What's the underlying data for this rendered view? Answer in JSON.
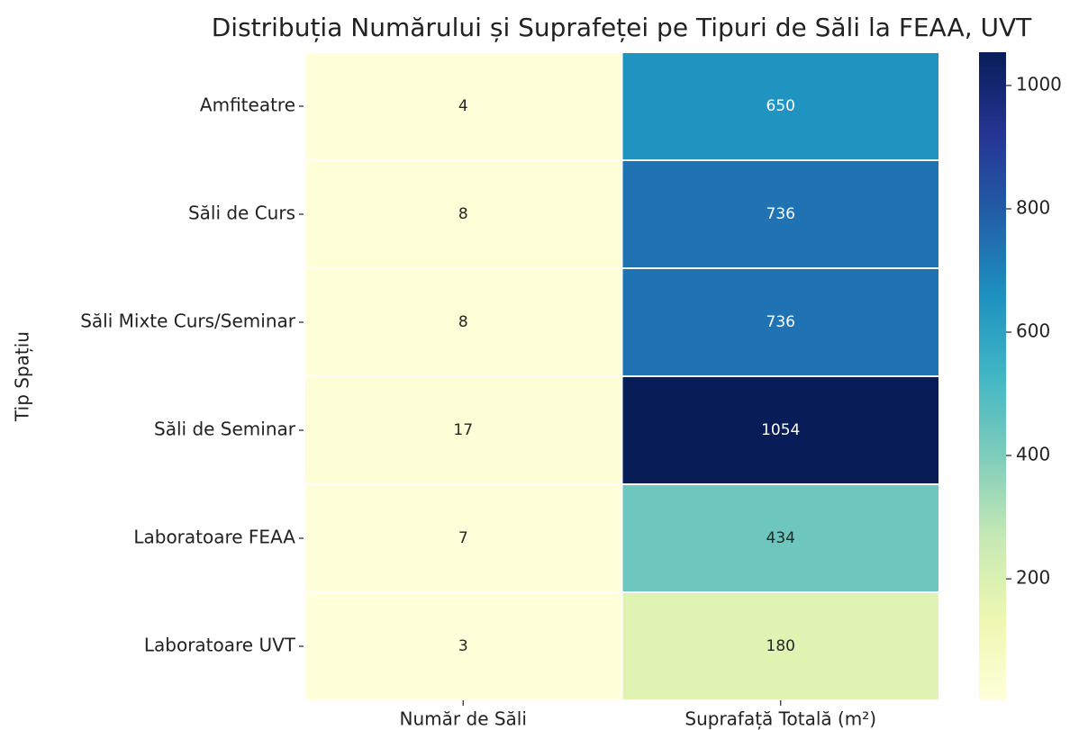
{
  "chart_data": {
    "type": "heatmap",
    "title": "Distribuția Numărului și Suprafeței pe Tipuri de Săli la FEAA, UVT",
    "ylabel": "Tip Spațiu",
    "x_categories": [
      "Număr de Săli",
      "Suprafață Totală (m²)"
    ],
    "y_categories": [
      "Amfiteatre",
      "Săli de Curs",
      "Săli Mixte Curs/Seminar",
      "Săli de Seminar",
      "Laboratoare FEAA",
      "Laboratoare UVT"
    ],
    "values": [
      [
        4,
        650
      ],
      [
        8,
        736
      ],
      [
        8,
        736
      ],
      [
        17,
        1054
      ],
      [
        7,
        434
      ],
      [
        3,
        180
      ]
    ],
    "colormap": "YlGnBu",
    "clim": [
      3,
      1054
    ],
    "cticks": [
      200,
      400,
      600,
      800,
      1000
    ]
  }
}
